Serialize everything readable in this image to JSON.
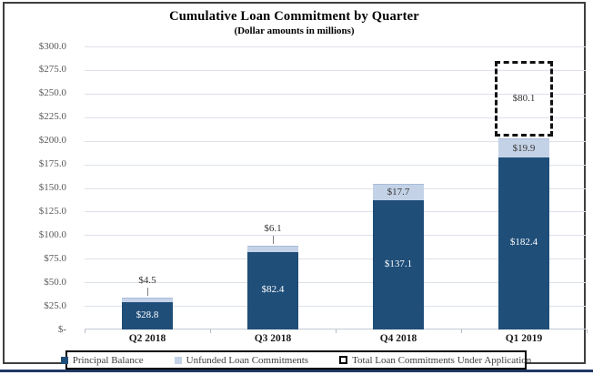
{
  "figure": {
    "title": "Cumulative Loan Commitment by Quarter",
    "subtitle": "(Dollar amounts in millions)"
  },
  "colors": {
    "principal": "#1F4E79",
    "unfunded": "#C4D2E7",
    "unfunded_edge": "#A9BCD9",
    "dashed_outline": "#111111",
    "bottom_rule": "#1F3864"
  },
  "chart_data": {
    "type": "bar",
    "stacked": true,
    "title": "Cumulative Loan Commitment by Quarter",
    "subtitle": "(Dollar amounts in millions)",
    "categories": [
      "Q2 2018",
      "Q3 2018",
      "Q4 2018",
      "Q1 2019"
    ],
    "series": [
      {
        "name": "Principal Balance",
        "values": [
          28.8,
          82.4,
          137.1,
          182.4
        ],
        "labels": [
          "$28.8",
          "$82.4",
          "$137.1",
          "$182.4"
        ],
        "color": "#1F4E79",
        "label_color": "#FFFFFF",
        "style": "solid"
      },
      {
        "name": "Unfunded Loan Commitments",
        "values": [
          4.5,
          6.1,
          17.7,
          19.9
        ],
        "labels": [
          "$4.5",
          "$6.1",
          "$17.7",
          "$19.9"
        ],
        "color": "#C4D2E7",
        "label_color": "#333333",
        "style": "solid"
      },
      {
        "name": "Total Loan Commitments Under Application",
        "values": [
          null,
          null,
          null,
          80.1
        ],
        "labels": [
          null,
          null,
          null,
          "$80.1"
        ],
        "color": "#111111",
        "label_color": "#333333",
        "style": "dashed-outline"
      }
    ],
    "y_axis": {
      "min": 0,
      "max": 300,
      "step": 25,
      "ticks": [
        {
          "value": 0,
          "label": "$-"
        },
        {
          "value": 25,
          "label": "$25.0"
        },
        {
          "value": 50,
          "label": "$50.0"
        },
        {
          "value": 75,
          "label": "$75.0"
        },
        {
          "value": 100,
          "label": "$100.0"
        },
        {
          "value": 125,
          "label": "$125.0"
        },
        {
          "value": 150,
          "label": "$150.0"
        },
        {
          "value": 175,
          "label": "$175.0"
        },
        {
          "value": 200,
          "label": "$200.0"
        },
        {
          "value": 225,
          "label": "$225.0"
        },
        {
          "value": 250,
          "label": "$250.0"
        },
        {
          "value": 275,
          "label": "$275.0"
        },
        {
          "value": 300,
          "label": "$300.0"
        }
      ]
    },
    "legend": {
      "position": "bottom",
      "entries": [
        {
          "label": "Principal Balance",
          "swatch": "solid-dark-blue"
        },
        {
          "label": "Unfunded Loan Commitments",
          "swatch": "solid-light-blue"
        },
        {
          "label": "Total Loan Commitments Under Application",
          "swatch": "dashed-outline"
        }
      ]
    },
    "grid": "horizontal",
    "ylim": [
      0,
      300
    ]
  }
}
